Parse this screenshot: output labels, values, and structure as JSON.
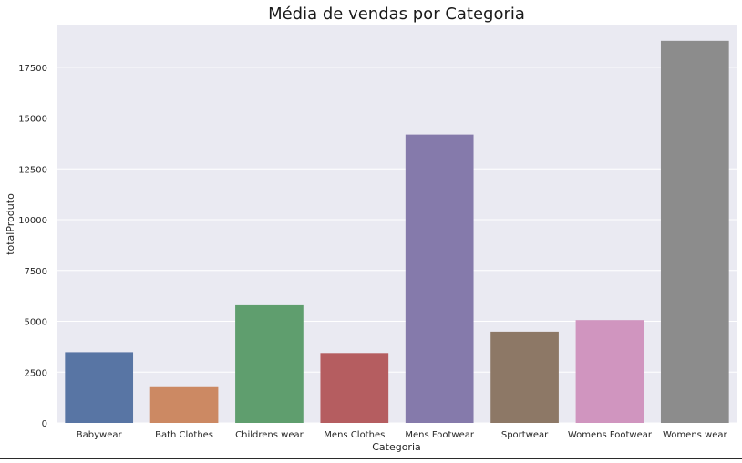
{
  "chart_data": {
    "type": "bar",
    "title": "Média de vendas por Categoria",
    "xlabel": "Categoria",
    "ylabel": "totalProduto",
    "categories": [
      "Babywear",
      "Bath Clothes",
      "Childrens wear",
      "Mens Clothes",
      "Mens Footwear",
      "Sportwear",
      "Womens Footwear",
      "Womens wear"
    ],
    "values": [
      3480,
      1760,
      5790,
      3440,
      14190,
      4490,
      5060,
      18800
    ],
    "colors": [
      "#5875a4",
      "#cc8963",
      "#5f9e6e",
      "#b55d60",
      "#857aab",
      "#8d7866",
      "#d095bf",
      "#8c8c8c"
    ],
    "ylim": [
      0,
      19600
    ],
    "yticks": [
      0,
      2500,
      5000,
      7500,
      10000,
      12500,
      15000,
      17500
    ],
    "grid": true,
    "background": "#eaeaf2"
  }
}
